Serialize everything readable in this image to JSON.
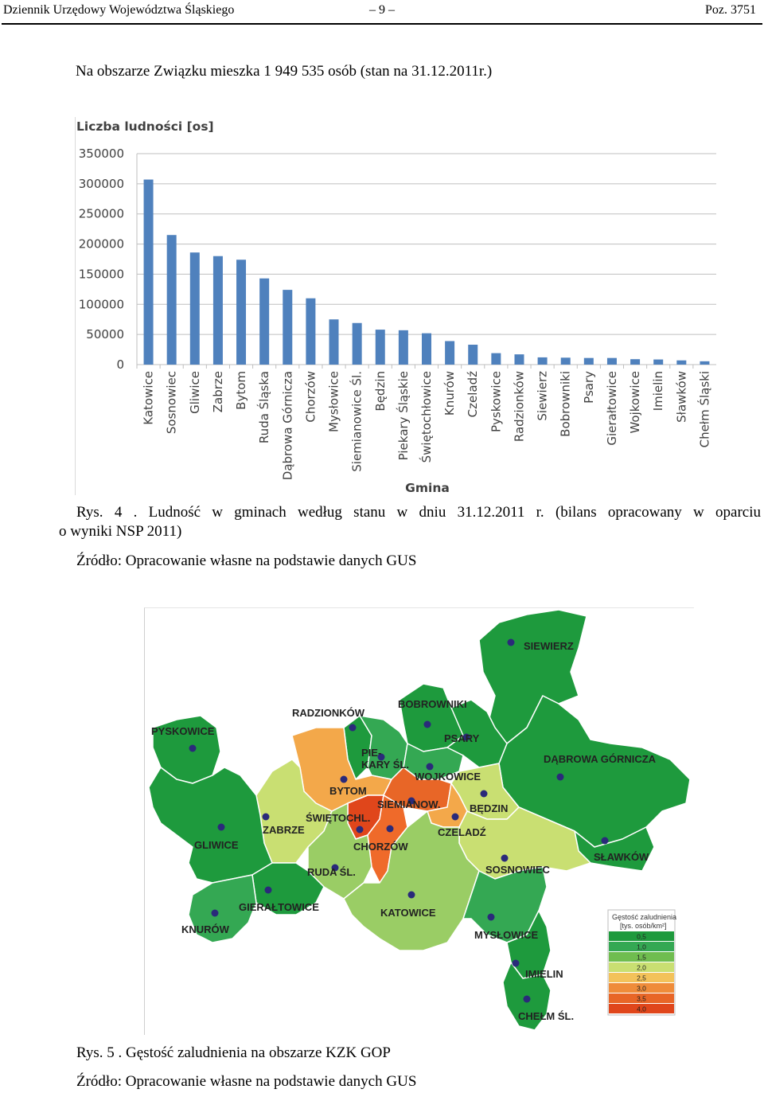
{
  "header": {
    "journal": "Dziennik Urzędowy Województwa Śląskiego",
    "page": "– 9 –",
    "position": "Poz. 3751"
  },
  "intro_text": "Na obszarze Związku mieszka 1 949 535 osób (stan na 31.12.2011r.)",
  "chart_data": {
    "type": "bar",
    "ylabel": "Liczba ludności [os]",
    "xlabel": "Gmina",
    "ylim": [
      0,
      350000
    ],
    "yticks": [
      "350000",
      "300000",
      "250000",
      "200000",
      "150000",
      "100000",
      "50000",
      "0"
    ],
    "grid": true,
    "color": "#4f81bd",
    "categories": [
      "Katowice",
      "Sosnowiec",
      "Gliwice",
      "Zabrze",
      "Bytom",
      "Ruda Śląska",
      "Dąbrowa Górnicza",
      "Chorzów",
      "Mysłowice",
      "Siemianowice Śl.",
      "Będzin",
      "Piekary Śląskie",
      "Świętochłowice",
      "Knurów",
      "Czeladź",
      "Pyskowice",
      "Radzionków",
      "Siewierz",
      "Bobrowniki",
      "Psary",
      "Gierałtowice",
      "Wojkowice",
      "Imielin",
      "Sławków",
      "Chełm Śląski"
    ],
    "values": [
      307000,
      215000,
      186000,
      180000,
      174000,
      143000,
      124000,
      110000,
      75000,
      69000,
      58000,
      57000,
      52000,
      39000,
      33000,
      19000,
      17000,
      12000,
      11500,
      11000,
      11000,
      9000,
      8500,
      7000,
      5500
    ]
  },
  "caption1": {
    "line1": "Rys. 4 . Ludność w gminach według stanu w dniu 31.12.2011 r. (bilans opracowany w oparciu",
    "line2": "o wyniki NSP 2011)"
  },
  "source1": "Źródło: Opracowanie własne na podstawie danych GUS",
  "map": {
    "labels": {
      "siewierz": "SIEWIERZ",
      "radzionkow": "RADZIONKÓW",
      "bobrowniki": "BOBROWNIKI",
      "pyskowice": "PYSKOWICE",
      "psary": "PSARY",
      "piekary1": "PIE-",
      "piekary2": "KARY ŚL.",
      "dabrowa": "DĄBROWA GÓRNICZA",
      "wojkowice": "WOJKOWICE",
      "bytom": "BYTOM",
      "siemianowice": "SIEMIANOW.",
      "bedzin": "BĘDZIN",
      "swietochl": "ŚWIĘTOCHL.",
      "zabrze": "ZABRZE",
      "czeladz": "CZELADŹ",
      "chorzow": "CHORZÓW",
      "gliwice": "GLIWICE",
      "slawkow": "SŁAWKÓW",
      "ruda": "RUDA ŚL.",
      "sosnowiec": "SOSNOWIEC",
      "gieraltowice": "GIERAŁTOWICE",
      "katowice": "KATOWICE",
      "knurow": "KNURÓW",
      "myslowice": "MYSŁOWICE",
      "imielin": "IMIELIN",
      "chelm": "CHEŁM ŚL."
    },
    "legend": {
      "title1": "Gęstość zaludnienia",
      "title2": "[tys. osób/km²]",
      "items": [
        {
          "label": "0,5",
          "color": "#1e9a3d"
        },
        {
          "label": "1,0",
          "color": "#34a853"
        },
        {
          "label": "1,5",
          "color": "#6fbd4f"
        },
        {
          "label": "2,0",
          "color": "#c9df72"
        },
        {
          "label": "2,5",
          "color": "#f3c25a"
        },
        {
          "label": "3,0",
          "color": "#ef8c3a"
        },
        {
          "label": "3,5",
          "color": "#e86627"
        },
        {
          "label": "4,0",
          "color": "#e0461b"
        }
      ]
    }
  },
  "caption2": "Rys. 5 . Gęstość zaludnienia na obszarze KZK GOP",
  "source2": "Źródło: Opracowanie własne na podstawie danych GUS"
}
